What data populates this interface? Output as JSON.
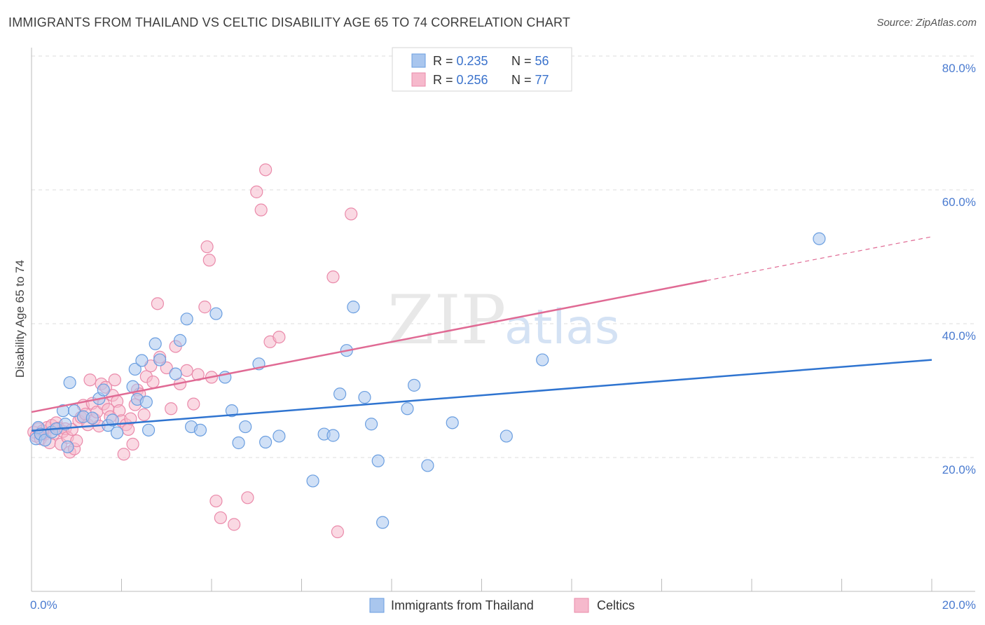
{
  "title": "IMMIGRANTS FROM THAILAND VS CELTIC DISABILITY AGE 65 TO 74 CORRELATION CHART",
  "source": "Source: ZipAtlas.com",
  "watermark": {
    "zip": "ZIP",
    "atlas": "atlas"
  },
  "colors": {
    "blue_fill": "#a9c6ee",
    "blue_stroke": "#6a9ee0",
    "blue_line": "#2f74d0",
    "pink_fill": "#f6b9cc",
    "pink_stroke": "#ea8aaa",
    "pink_line": "#e06a94",
    "grid": "#dddddd",
    "tick": "#4a7bd0"
  },
  "legend": {
    "rows": [
      {
        "r_label": "R = ",
        "r_value": "0.235",
        "n_label": "N = ",
        "n_value": "56"
      },
      {
        "r_label": "R = ",
        "r_value": "0.256",
        "n_label": "N = ",
        "n_value": "77"
      }
    ]
  },
  "chart_data": {
    "type": "scatter",
    "title": "IMMIGRANTS FROM THAILAND VS CELTIC DISABILITY AGE 65 TO 74 CORRELATION CHART",
    "xlabel": "",
    "ylabel": "Disability Age 65 to 74",
    "xlim": [
      0,
      20
    ],
    "ylim": [
      0,
      80
    ],
    "x_tick_labels": [
      "0.0%",
      "20.0%"
    ],
    "y_ticks": [
      20,
      40,
      60,
      80
    ],
    "y_tick_labels": [
      "20.0%",
      "40.0%",
      "60.0%",
      "80.0%"
    ],
    "grid": true,
    "legend_position": "top-center",
    "series": [
      {
        "name": "Immigrants from Thailand",
        "color": "#a9c6ee",
        "trend": {
          "x": [
            0,
            20
          ],
          "y": [
            24.0,
            34.6
          ],
          "dashed_from": null
        },
        "points": [
          [
            0.1,
            22.8
          ],
          [
            0.15,
            24.5
          ],
          [
            0.2,
            23.5
          ],
          [
            0.3,
            22.6
          ],
          [
            0.45,
            23.8
          ],
          [
            0.55,
            24.3
          ],
          [
            0.7,
            27.0
          ],
          [
            0.75,
            25.0
          ],
          [
            0.8,
            21.6
          ],
          [
            0.85,
            31.2
          ],
          [
            0.95,
            27.0
          ],
          [
            1.15,
            26.1
          ],
          [
            1.35,
            25.9
          ],
          [
            1.5,
            28.8
          ],
          [
            1.6,
            30.1
          ],
          [
            1.7,
            24.8
          ],
          [
            1.8,
            25.6
          ],
          [
            1.9,
            23.7
          ],
          [
            2.25,
            30.6
          ],
          [
            2.3,
            33.2
          ],
          [
            2.35,
            28.7
          ],
          [
            2.45,
            34.5
          ],
          [
            2.55,
            28.3
          ],
          [
            2.6,
            24.1
          ],
          [
            2.75,
            37.0
          ],
          [
            2.85,
            34.6
          ],
          [
            3.2,
            32.5
          ],
          [
            3.3,
            37.5
          ],
          [
            3.45,
            40.7
          ],
          [
            3.55,
            24.6
          ],
          [
            3.75,
            24.1
          ],
          [
            4.1,
            41.5
          ],
          [
            4.3,
            32.0
          ],
          [
            4.45,
            27.0
          ],
          [
            4.6,
            22.2
          ],
          [
            4.75,
            24.6
          ],
          [
            5.05,
            34.0
          ],
          [
            5.2,
            22.3
          ],
          [
            5.5,
            23.2
          ],
          [
            6.25,
            16.5
          ],
          [
            6.5,
            23.5
          ],
          [
            6.7,
            23.3
          ],
          [
            6.85,
            29.5
          ],
          [
            7.0,
            36.0
          ],
          [
            7.15,
            42.5
          ],
          [
            7.4,
            29.0
          ],
          [
            7.55,
            25.0
          ],
          [
            7.7,
            19.5
          ],
          [
            7.8,
            10.3
          ],
          [
            8.35,
            27.3
          ],
          [
            8.5,
            30.8
          ],
          [
            8.8,
            18.8
          ],
          [
            9.35,
            25.2
          ],
          [
            10.55,
            23.2
          ],
          [
            11.35,
            34.6
          ],
          [
            17.5,
            52.7
          ]
        ]
      },
      {
        "name": "Celtics",
        "color": "#f6b9cc",
        "trend": {
          "x": [
            0,
            20
          ],
          "y": [
            26.8,
            53.0
          ],
          "dashed_from": 15.0
        },
        "points": [
          [
            0.05,
            23.8
          ],
          [
            0.1,
            23.2
          ],
          [
            0.15,
            24.3
          ],
          [
            0.2,
            22.8
          ],
          [
            0.25,
            24.0
          ],
          [
            0.3,
            23.5
          ],
          [
            0.35,
            24.5
          ],
          [
            0.4,
            22.2
          ],
          [
            0.45,
            24.8
          ],
          [
            0.5,
            23.6
          ],
          [
            0.55,
            25.2
          ],
          [
            0.6,
            24.4
          ],
          [
            0.65,
            22.0
          ],
          [
            0.7,
            23.9
          ],
          [
            0.75,
            24.3
          ],
          [
            0.8,
            23.0
          ],
          [
            0.85,
            20.8
          ],
          [
            0.9,
            24.2
          ],
          [
            0.95,
            21.3
          ],
          [
            1.0,
            22.5
          ],
          [
            1.05,
            25.5
          ],
          [
            1.1,
            26.0
          ],
          [
            1.15,
            27.8
          ],
          [
            1.2,
            26.5
          ],
          [
            1.25,
            24.9
          ],
          [
            1.3,
            31.6
          ],
          [
            1.35,
            28.1
          ],
          [
            1.4,
            25.7
          ],
          [
            1.45,
            26.8
          ],
          [
            1.5,
            24.7
          ],
          [
            1.55,
            31.0
          ],
          [
            1.6,
            28.0
          ],
          [
            1.65,
            30.5
          ],
          [
            1.7,
            27.2
          ],
          [
            1.75,
            26.1
          ],
          [
            1.8,
            29.3
          ],
          [
            1.85,
            31.6
          ],
          [
            1.9,
            28.4
          ],
          [
            1.95,
            27.0
          ],
          [
            2.0,
            25.5
          ],
          [
            2.05,
            20.5
          ],
          [
            2.1,
            24.9
          ],
          [
            2.15,
            24.2
          ],
          [
            2.2,
            25.8
          ],
          [
            2.25,
            22.0
          ],
          [
            2.3,
            27.9
          ],
          [
            2.35,
            30.1
          ],
          [
            2.4,
            29.5
          ],
          [
            2.5,
            26.4
          ],
          [
            2.55,
            32.1
          ],
          [
            2.65,
            33.7
          ],
          [
            2.7,
            31.3
          ],
          [
            2.8,
            43.0
          ],
          [
            2.85,
            35.0
          ],
          [
            3.0,
            33.4
          ],
          [
            3.1,
            27.3
          ],
          [
            3.2,
            36.6
          ],
          [
            3.3,
            31.0
          ],
          [
            3.45,
            33.0
          ],
          [
            3.6,
            28.0
          ],
          [
            3.7,
            32.4
          ],
          [
            3.85,
            42.5
          ],
          [
            3.9,
            51.5
          ],
          [
            3.95,
            49.5
          ],
          [
            4.0,
            32.0
          ],
          [
            4.1,
            13.5
          ],
          [
            4.2,
            11.0
          ],
          [
            4.5,
            10.0
          ],
          [
            4.8,
            14.0
          ],
          [
            5.0,
            59.7
          ],
          [
            5.1,
            57.0
          ],
          [
            5.2,
            63.0
          ],
          [
            5.3,
            37.3
          ],
          [
            5.5,
            38.0
          ],
          [
            6.7,
            47.0
          ],
          [
            6.8,
            8.9
          ],
          [
            7.1,
            56.4
          ]
        ]
      }
    ]
  },
  "bottom_legend": {
    "items": [
      {
        "label": "Immigrants from Thailand"
      },
      {
        "label": "Celtics"
      }
    ]
  }
}
